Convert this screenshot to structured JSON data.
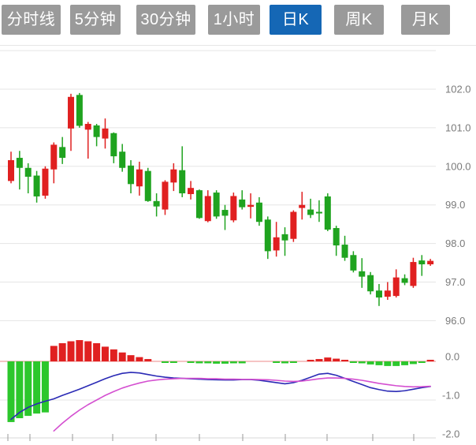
{
  "tabs": {
    "items": [
      {
        "name": "tab-time-line",
        "label": "分时线",
        "active": false
      },
      {
        "name": "tab-5min",
        "label": "5分钟",
        "active": false
      },
      {
        "name": "tab-30min",
        "label": "30分钟",
        "active": false
      },
      {
        "name": "tab-1hour",
        "label": "1小时",
        "active": false
      },
      {
        "name": "tab-daily-k",
        "label": "日K",
        "active": true
      },
      {
        "name": "tab-weekly-k",
        "label": "周K",
        "active": false
      },
      {
        "name": "tab-monthly-k",
        "label": "月K",
        "active": false
      }
    ],
    "active_bg": "#1567b5",
    "inactive_bg": "#9a9a9a",
    "text_color": "#ffffff"
  },
  "colors": {
    "candle_up": "#e02020",
    "candle_down": "#1fa31f",
    "hist_up": "#e02020",
    "hist_down": "#2cc72c",
    "dif_line": "#2a2ab5",
    "dea_line": "#d44fd0",
    "zero_line": "#ee8888",
    "grid": "#e5e5e5",
    "axis_line": "#d9d9d9",
    "tick": "#999999",
    "axis_text": "#7a7a7a",
    "separator": "#e6e6e6",
    "background": "#ffffff"
  },
  "price_axis": {
    "labels": [
      "102.0",
      "101.0",
      "100.0",
      "99.0",
      "98.0",
      "97.0",
      "96.0"
    ],
    "values": [
      102,
      101,
      100,
      99,
      98,
      97,
      96
    ],
    "unlabeled_top_gridline": 103
  },
  "macd_axis": {
    "labels": [
      "0.0",
      "-1.0",
      "-2.0"
    ],
    "values": [
      0,
      -1,
      -2
    ]
  },
  "chart_data": {
    "type": "candlestick",
    "title": "",
    "xlabel": "",
    "ylabel": "",
    "price_range": [
      95.8,
      103.1
    ],
    "grid": true,
    "up_means": "price rose (red, Chinese convention)",
    "down_means": "price fell (green)",
    "ohlc": [
      [
        99.62,
        100.38,
        99.56,
        100.16
      ],
      [
        100.22,
        100.4,
        99.4,
        99.96
      ],
      [
        99.96,
        100.08,
        99.3,
        99.73
      ],
      [
        99.76,
        99.88,
        99.06,
        99.22
      ],
      [
        99.24,
        100.0,
        99.16,
        99.94
      ],
      [
        99.92,
        100.62,
        99.56,
        100.56
      ],
      [
        100.5,
        100.76,
        100.06,
        100.22
      ],
      [
        100.98,
        101.88,
        100.4,
        101.8
      ],
      [
        101.85,
        101.9,
        101.0,
        101.05
      ],
      [
        100.95,
        101.15,
        100.2,
        101.1
      ],
      [
        101.06,
        101.1,
        100.52,
        100.76
      ],
      [
        100.72,
        101.24,
        100.46,
        100.98
      ],
      [
        100.86,
        100.88,
        100.08,
        100.26
      ],
      [
        100.38,
        100.58,
        99.86,
        99.96
      ],
      [
        100.02,
        100.16,
        99.3,
        99.54
      ],
      [
        99.48,
        100.12,
        99.24,
        99.92
      ],
      [
        99.88,
        99.96,
        99.08,
        99.1
      ],
      [
        99.1,
        99.3,
        98.7,
        98.96
      ],
      [
        98.88,
        99.64,
        98.74,
        99.6
      ],
      [
        99.58,
        100.08,
        99.36,
        99.92
      ],
      [
        99.9,
        100.52,
        99.2,
        99.3
      ],
      [
        99.28,
        99.62,
        99.14,
        99.44
      ],
      [
        99.38,
        99.4,
        98.64,
        98.66
      ],
      [
        98.58,
        99.38,
        98.55,
        99.23
      ],
      [
        99.32,
        99.38,
        98.64,
        98.7
      ],
      [
        98.87,
        99.0,
        98.35,
        98.72
      ],
      [
        98.6,
        99.32,
        98.55,
        99.23
      ],
      [
        99.14,
        99.38,
        98.88,
        98.94
      ],
      [
        98.95,
        99.3,
        98.65,
        99.0
      ],
      [
        99.06,
        99.2,
        98.46,
        98.56
      ],
      [
        98.62,
        98.7,
        97.6,
        97.8
      ],
      [
        97.82,
        98.56,
        97.66,
        98.16
      ],
      [
        98.24,
        98.42,
        97.68,
        98.08
      ],
      [
        98.12,
        98.86,
        98.04,
        98.82
      ],
      [
        98.92,
        99.34,
        98.62,
        99.0
      ],
      [
        98.88,
        99.16,
        98.66,
        98.74
      ],
      [
        98.82,
        99.12,
        98.56,
        98.78
      ],
      [
        99.22,
        99.3,
        98.32,
        98.36
      ],
      [
        98.4,
        98.46,
        97.68,
        97.95
      ],
      [
        97.97,
        98.2,
        97.55,
        97.63
      ],
      [
        97.7,
        97.8,
        97.25,
        97.3
      ],
      [
        97.28,
        97.62,
        96.85,
        97.14
      ],
      [
        97.18,
        97.26,
        96.68,
        96.76
      ],
      [
        96.78,
        96.95,
        96.38,
        96.6
      ],
      [
        96.62,
        97.0,
        96.54,
        96.78
      ],
      [
        96.64,
        97.33,
        96.6,
        97.12
      ],
      [
        97.1,
        97.2,
        96.92,
        96.98
      ],
      [
        96.9,
        97.63,
        96.85,
        97.52
      ],
      [
        97.56,
        97.7,
        97.16,
        97.46
      ],
      [
        97.46,
        97.6,
        97.42,
        97.55
      ]
    ],
    "macd": {
      "histogram": [
        -1.57,
        -1.47,
        -1.41,
        -1.35,
        -1.32,
        0.4,
        0.47,
        0.52,
        0.55,
        0.52,
        0.47,
        0.38,
        0.31,
        0.23,
        0.16,
        0.11,
        0.06,
        -0.01,
        -0.03,
        -0.04,
        0.02,
        -0.04,
        -0.05,
        -0.05,
        -0.06,
        -0.06,
        -0.05,
        -0.05,
        -0.01,
        0.02,
        -0.01,
        -0.04,
        -0.05,
        -0.04,
        -0.01,
        0.04,
        0.06,
        0.1,
        0.07,
        0.03,
        -0.03,
        -0.05,
        -0.08,
        -0.1,
        -0.12,
        -0.12,
        -0.1,
        -0.07,
        -0.03,
        0.04
      ],
      "dif": [
        -1.5,
        -1.32,
        -1.19,
        -1.1,
        -1.03,
        -0.97,
        -0.88,
        -0.8,
        -0.72,
        -0.63,
        -0.54,
        -0.45,
        -0.37,
        -0.31,
        -0.285,
        -0.3,
        -0.34,
        -0.38,
        -0.41,
        -0.43,
        -0.44,
        -0.45,
        -0.46,
        -0.47,
        -0.475,
        -0.48,
        -0.48,
        -0.47,
        -0.47,
        -0.49,
        -0.52,
        -0.55,
        -0.58,
        -0.55,
        -0.49,
        -0.41,
        -0.33,
        -0.31,
        -0.36,
        -0.44,
        -0.52,
        -0.6,
        -0.68,
        -0.73,
        -0.77,
        -0.78,
        -0.76,
        -0.72,
        -0.68,
        -0.65
      ],
      "dea": [
        null,
        null,
        null,
        null,
        null,
        -1.8,
        -1.6,
        -1.42,
        -1.26,
        -1.12,
        -1.0,
        -0.88,
        -0.78,
        -0.69,
        -0.62,
        -0.56,
        -0.51,
        -0.48,
        -0.46,
        -0.45,
        -0.44,
        -0.44,
        -0.44,
        -0.45,
        -0.45,
        -0.46,
        -0.46,
        -0.465,
        -0.465,
        -0.47,
        -0.475,
        -0.49,
        -0.51,
        -0.52,
        -0.51,
        -0.48,
        -0.45,
        -0.43,
        -0.43,
        -0.44,
        -0.46,
        -0.49,
        -0.53,
        -0.57,
        -0.6,
        -0.63,
        -0.65,
        -0.66,
        -0.655,
        -0.645
      ]
    }
  }
}
